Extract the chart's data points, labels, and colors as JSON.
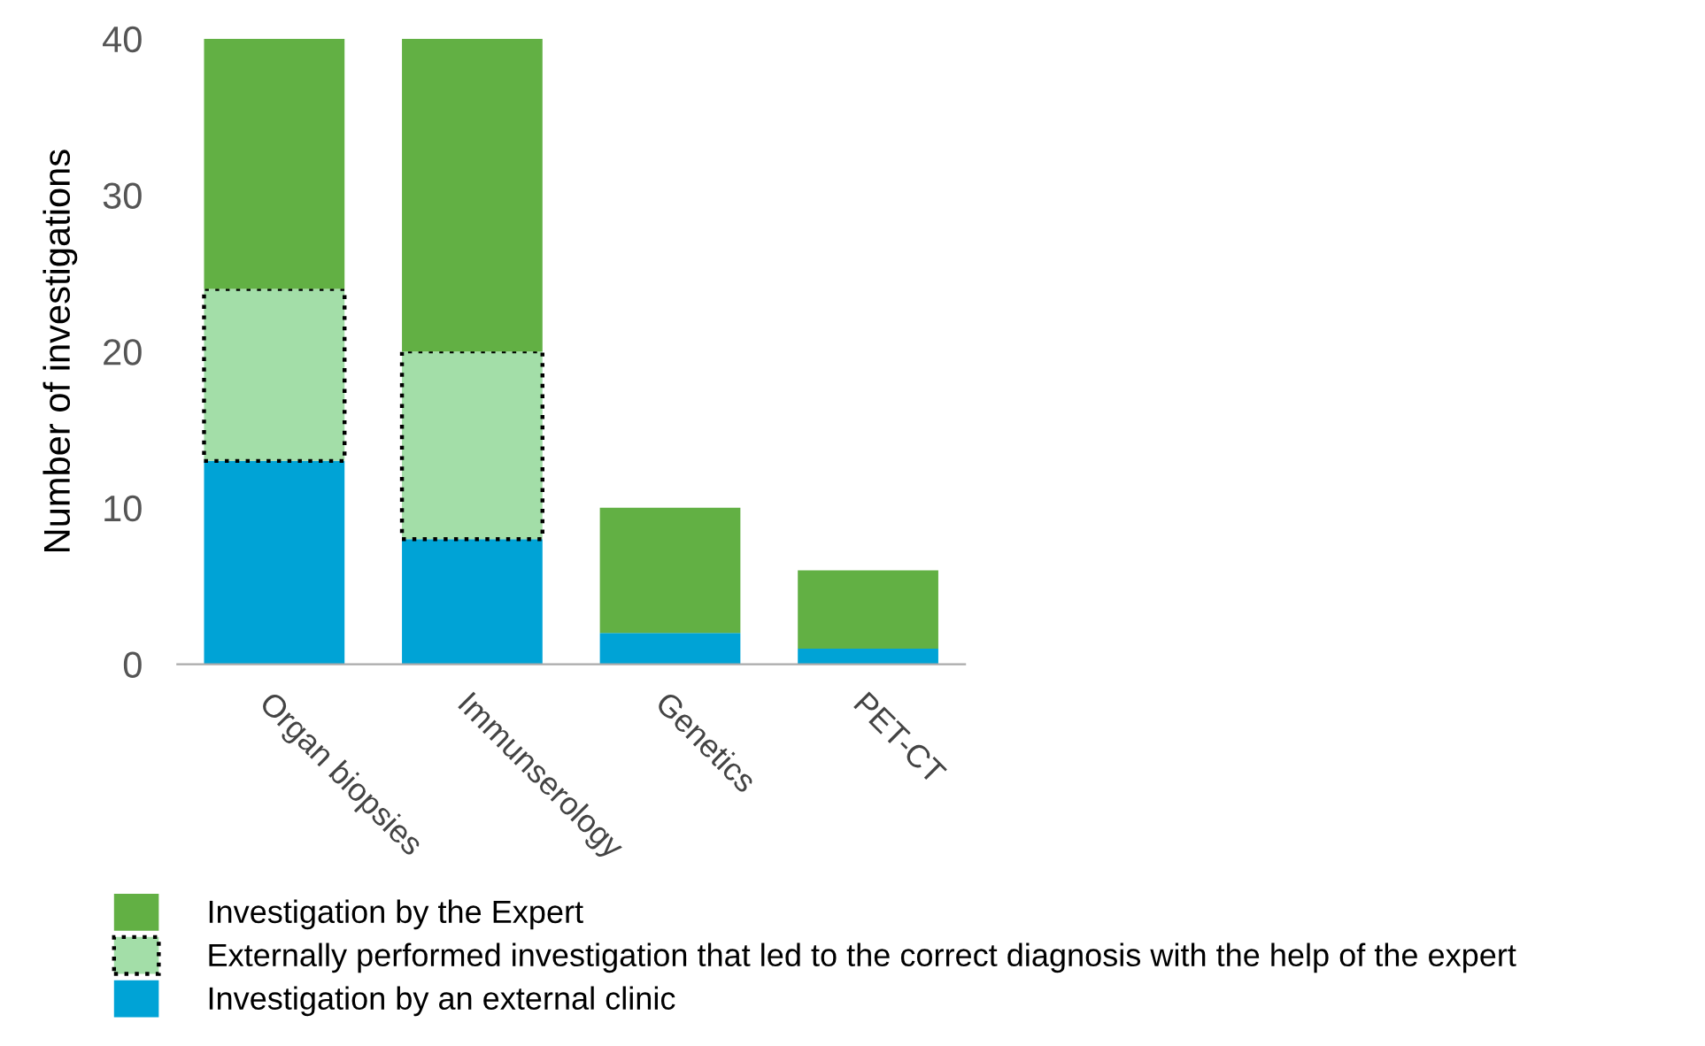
{
  "chart_data": {
    "type": "bar",
    "stacked": true,
    "ylabel": "Number of investigations",
    "categories": [
      "Organ biopsies",
      "Immunserology",
      "Genetics",
      "PET-CT"
    ],
    "series": [
      {
        "name": "Investigation by an external clinic",
        "color": "#00a3d6",
        "values": [
          13,
          8,
          2,
          1
        ]
      },
      {
        "name": "Externally performed investigation that led to the correct diagnosis with the help of the expert",
        "color": "#a3dea8",
        "values": [
          11,
          12,
          0,
          0
        ],
        "line_style": "dotted"
      },
      {
        "name": "Investigation by the Expert",
        "color": "#62b044",
        "values": [
          16,
          20,
          8,
          5
        ]
      }
    ],
    "ylim": [
      0,
      40
    ],
    "yticks": [
      0,
      10,
      20,
      30,
      40
    ],
    "grid": false,
    "legend": "bottom"
  }
}
